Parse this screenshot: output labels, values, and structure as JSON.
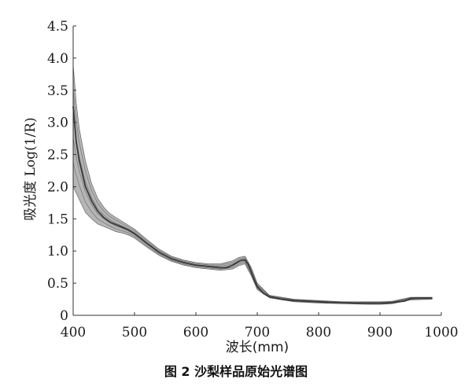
{
  "chart_data": {
    "type": "line",
    "caption": "图 2   沙梨样品原始光谱图",
    "xlabel": "波长(mm)",
    "ylabel": "吸光度 Log(1/R)",
    "xlim": [
      400,
      1000
    ],
    "ylim": [
      0,
      4.5
    ],
    "xticks": [
      "400",
      "500",
      "600",
      "700",
      "800",
      "900",
      "1000"
    ],
    "yticks": [
      "0",
      "0.5",
      "1.0",
      "1.5",
      "2.0",
      "2.5",
      "3.0",
      "3.5",
      "4.0",
      "4.5"
    ],
    "grid": false,
    "legend": "none",
    "line_color": "#3a3a3a",
    "envelope_color": "#7a7a7a",
    "series": [
      {
        "x": [
          400,
          405,
          410,
          420,
          430,
          440,
          450,
          460,
          470,
          480,
          490,
          500,
          510,
          520,
          530,
          540,
          550,
          560,
          570,
          580,
          590,
          600,
          610,
          620,
          630,
          640,
          650,
          660,
          665,
          670,
          675,
          680,
          685,
          690,
          695,
          700,
          710,
          720,
          740,
          760,
          780,
          800,
          820,
          840,
          860,
          880,
          900,
          910,
          920,
          930,
          940,
          950,
          960,
          970,
          980,
          985
        ],
        "y": [
          3.25,
          2.7,
          2.4,
          2.0,
          1.78,
          1.62,
          1.52,
          1.45,
          1.41,
          1.37,
          1.33,
          1.27,
          1.2,
          1.12,
          1.05,
          0.98,
          0.93,
          0.88,
          0.85,
          0.82,
          0.8,
          0.78,
          0.77,
          0.76,
          0.75,
          0.74,
          0.74,
          0.78,
          0.81,
          0.84,
          0.86,
          0.86,
          0.8,
          0.68,
          0.55,
          0.45,
          0.34,
          0.29,
          0.25,
          0.23,
          0.22,
          0.21,
          0.2,
          0.2,
          0.19,
          0.19,
          0.19,
          0.19,
          0.2,
          0.21,
          0.22,
          0.26,
          0.27,
          0.27,
          0.27,
          0.27
        ]
      }
    ],
    "envelope": {
      "x": [
        400,
        405,
        410,
        420,
        430,
        440,
        450,
        460,
        470,
        480,
        490,
        500,
        520,
        540,
        560,
        580,
        600,
        620,
        640,
        660,
        670,
        680,
        690,
        700,
        720,
        760,
        800,
        840,
        880,
        900,
        920,
        950,
        985
      ],
      "upper": [
        3.9,
        3.3,
        2.9,
        2.4,
        2.05,
        1.82,
        1.68,
        1.58,
        1.52,
        1.46,
        1.4,
        1.34,
        1.18,
        1.03,
        0.92,
        0.86,
        0.82,
        0.8,
        0.8,
        0.85,
        0.9,
        0.92,
        0.75,
        0.5,
        0.31,
        0.25,
        0.23,
        0.21,
        0.21,
        0.21,
        0.22,
        0.28,
        0.28
      ],
      "lower": [
        2.0,
        1.9,
        1.8,
        1.6,
        1.5,
        1.42,
        1.38,
        1.34,
        1.3,
        1.28,
        1.25,
        1.2,
        1.06,
        0.93,
        0.84,
        0.78,
        0.74,
        0.72,
        0.7,
        0.72,
        0.77,
        0.8,
        0.62,
        0.4,
        0.27,
        0.21,
        0.19,
        0.18,
        0.17,
        0.17,
        0.18,
        0.24,
        0.25
      ]
    }
  }
}
